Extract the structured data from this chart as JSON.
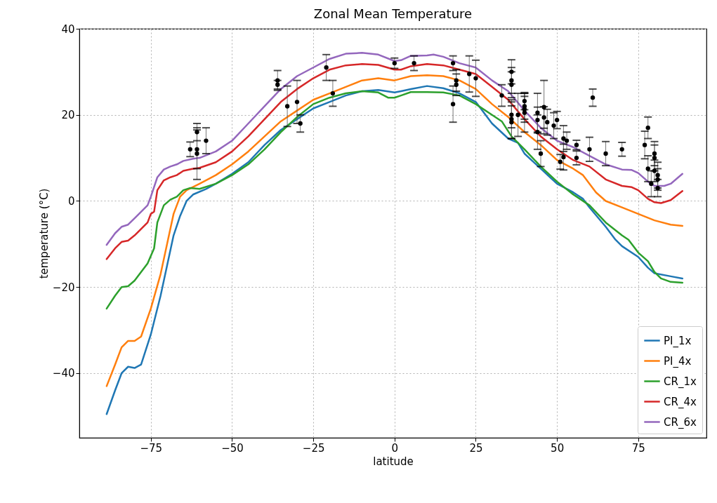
{
  "chart_data": {
    "type": "line",
    "title": "Zonal Mean Temperature",
    "xlabel": "latitude",
    "ylabel": "temperature (°C)",
    "xlim": [
      -97,
      96
    ],
    "ylim": [
      -55,
      40
    ],
    "xticks": [
      -75,
      -50,
      -25,
      0,
      25,
      50,
      75
    ],
    "yticks": [
      -40,
      -20,
      0,
      20,
      40
    ],
    "grid": true,
    "legend": "bottom right",
    "series": [
      {
        "name": "PI_1x",
        "color": "#1f77b4",
        "x": [
          -88.6,
          -86,
          -84,
          -82,
          -80,
          -78,
          -75,
          -72,
          -70,
          -68,
          -66,
          -64,
          -62,
          -58,
          -55,
          -50,
          -45,
          -40,
          -35,
          -30,
          -25,
          -20,
          -15,
          -10,
          -5,
          0,
          2,
          5,
          10,
          15,
          20,
          25,
          27,
          30,
          35,
          38,
          40,
          45,
          50,
          55,
          58,
          60,
          65,
          68,
          70,
          75,
          78,
          80,
          85,
          88.6
        ],
        "values": [
          -49.5,
          -44,
          -40,
          -38.5,
          -38.8,
          -38,
          -31,
          -22,
          -15,
          -8,
          -3.5,
          0,
          1.5,
          2.8,
          4,
          6.3,
          9,
          13,
          16.5,
          19,
          21.5,
          23,
          24.5,
          25.5,
          25.8,
          25.2,
          25.5,
          26,
          26.7,
          26.2,
          25,
          23,
          21,
          18,
          14.5,
          13.5,
          11,
          7.5,
          4,
          2,
          0.5,
          -1.5,
          -6,
          -9,
          -10.5,
          -13,
          -15.5,
          -16.8,
          -17.5,
          -18
        ]
      },
      {
        "name": "PI_4x",
        "color": "#ff7f0e",
        "x": [
          -88.6,
          -86,
          -84,
          -82,
          -80,
          -78,
          -75,
          -72,
          -70,
          -68,
          -66,
          -64,
          -60,
          -55,
          -50,
          -45,
          -40,
          -35,
          -30,
          -25,
          -20,
          -15,
          -10,
          -5,
          0,
          5,
          10,
          15,
          20,
          25,
          30,
          35,
          40,
          45,
          50,
          55,
          58,
          60,
          62,
          65,
          70,
          75,
          80,
          85,
          88.6
        ],
        "values": [
          -43,
          -38,
          -34,
          -32.5,
          -32.5,
          -31.5,
          -25,
          -17,
          -10,
          -3,
          1,
          2.5,
          4,
          6,
          8.5,
          11.5,
          15,
          18.5,
          21,
          23.5,
          25,
          26.5,
          28,
          28.5,
          28,
          29,
          29.2,
          29,
          28,
          26,
          22.5,
          19.5,
          16,
          13,
          9.5,
          7.5,
          6,
          4,
          2,
          0,
          -1.5,
          -3,
          -4.5,
          -5.5,
          -5.8
        ]
      },
      {
        "name": "CR_1x",
        "color": "#2ca02c",
        "x": [
          -88.6,
          -86,
          -84,
          -82,
          -80,
          -78,
          -76,
          -74,
          -73,
          -71,
          -69,
          -67,
          -65,
          -63,
          -60,
          -55,
          -50,
          -45,
          -40,
          -35,
          -30,
          -25,
          -20,
          -15,
          -10,
          -5,
          -2,
          0,
          2,
          5,
          10,
          15,
          20,
          25,
          30,
          33,
          36,
          40,
          45,
          50,
          55,
          60,
          65,
          70,
          72,
          75,
          78,
          80,
          82,
          85,
          88.6
        ],
        "values": [
          -25,
          -22,
          -20,
          -19.8,
          -18.5,
          -16.5,
          -14.5,
          -11,
          -5,
          -1,
          0.3,
          1,
          2.5,
          3,
          2.8,
          4,
          6,
          8.5,
          12,
          16,
          19.5,
          22.5,
          24,
          25,
          25.5,
          25.2,
          24,
          24,
          24.5,
          25.3,
          25.3,
          25.2,
          24.5,
          22.5,
          20,
          18.5,
          15,
          12,
          8,
          4.5,
          1.5,
          -1,
          -5,
          -8,
          -9,
          -12,
          -14,
          -16.5,
          -18,
          -18.8,
          -19
        ]
      },
      {
        "name": "CR_4x",
        "color": "#d62728",
        "x": [
          -88.6,
          -86,
          -84,
          -82,
          -80,
          -78,
          -76,
          -75,
          -74,
          -73,
          -71,
          -69,
          -67,
          -65,
          -62,
          -60,
          -55,
          -50,
          -45,
          -40,
          -35,
          -30,
          -25,
          -20,
          -15,
          -10,
          -5,
          0,
          2,
          5,
          10,
          15,
          20,
          25,
          30,
          35,
          40,
          45,
          50,
          55,
          60,
          65,
          70,
          73,
          75,
          78,
          80,
          82,
          85,
          88.6
        ],
        "values": [
          -13.5,
          -11,
          -9.5,
          -9.2,
          -8,
          -6.5,
          -5,
          -3,
          -2.5,
          2.5,
          4.8,
          5.5,
          6,
          7,
          7.5,
          7.7,
          9,
          11.5,
          15,
          19,
          23,
          26,
          28.5,
          30.5,
          31.5,
          31.8,
          31.6,
          30.5,
          30.5,
          31.3,
          31.8,
          31.5,
          30.5,
          29.5,
          26.5,
          23.5,
          19,
          15,
          12,
          9.5,
          8,
          5,
          3.5,
          3.2,
          2.5,
          0.5,
          -0.3,
          -0.5,
          0.2,
          2.3
        ]
      },
      {
        "name": "CR_6x",
        "color": "#9467bd",
        "x": [
          -88.6,
          -86,
          -84,
          -82,
          -80,
          -78,
          -76,
          -75,
          -73,
          -71,
          -69,
          -67,
          -65,
          -62,
          -60,
          -55,
          -50,
          -45,
          -40,
          -35,
          -30,
          -25,
          -20,
          -15,
          -10,
          -5,
          0,
          2,
          5,
          10,
          12,
          15,
          20,
          25,
          30,
          35,
          40,
          45,
          50,
          55,
          60,
          65,
          70,
          73,
          75,
          78,
          80,
          83,
          85,
          88.6
        ],
        "values": [
          -10.2,
          -7.5,
          -6,
          -5.5,
          -4,
          -2.5,
          -1,
          1,
          5.5,
          7.3,
          8,
          8.5,
          9.3,
          9.8,
          10,
          11.5,
          14,
          18,
          22,
          26,
          29,
          31,
          33,
          34.2,
          34.4,
          34,
          32.5,
          32.7,
          33.7,
          33.8,
          34,
          33.5,
          32,
          31,
          28,
          25.5,
          21,
          17,
          14,
          12.5,
          10.5,
          8.5,
          7.3,
          7.2,
          6.5,
          4.5,
          3.5,
          3.5,
          4,
          6.3
        ]
      },
      {
        "type": "scatter",
        "color": "#000000",
        "marker": "circle",
        "x": [
          -62.9,
          -60.8,
          -60.8,
          -60.8,
          -58.0,
          -36.0,
          -36.0,
          -33.0,
          -30.0,
          -29.0,
          -21.0,
          -19.0,
          0,
          6,
          18,
          18,
          19,
          19,
          23,
          25,
          33,
          36,
          36,
          36,
          36,
          36,
          36,
          38,
          40,
          40,
          40,
          40,
          44,
          44,
          44,
          45,
          46,
          46,
          47,
          49,
          50,
          51,
          52,
          52,
          53,
          56,
          56,
          60,
          61,
          65,
          70,
          77,
          78,
          78,
          79,
          80,
          80,
          80,
          81,
          81,
          81
        ],
        "values": [
          12.0,
          16.0,
          12.0,
          11.0,
          14.0,
          28.0,
          27.0,
          22.0,
          23.0,
          18.0,
          31.0,
          25.0,
          32.0,
          32.0,
          32.0,
          22.5,
          28,
          27,
          29.5,
          28.5,
          24.5,
          30,
          28,
          27,
          20,
          19,
          18.3,
          20,
          23.2,
          22,
          21.3,
          20.5,
          20.5,
          18.8,
          16,
          11,
          21.8,
          19.4,
          18.3,
          17.5,
          18.8,
          9.1,
          14.5,
          10.2,
          14,
          13,
          10,
          12,
          24,
          11,
          12,
          13,
          17,
          7.5,
          4,
          11,
          10,
          7,
          6,
          5,
          3
        ],
        "errors": [
          1.7,
          2.0,
          4.5,
          6.0,
          3.0,
          2.3,
          1.0,
          4.7,
          5.0,
          2.0,
          3.0,
          3.0,
          1.2,
          1.7,
          1.7,
          4.2,
          2.5,
          2.5,
          4.2,
          4.2,
          2.5,
          2.8,
          3,
          3,
          3,
          4.5,
          3.8,
          5,
          2,
          3,
          3,
          4.5,
          4.5,
          3,
          4,
          3,
          6.2,
          2.5,
          3,
          3,
          2,
          1.7,
          3,
          3,
          2,
          1.1,
          1.6,
          2.8,
          2,
          2.8,
          1.6,
          3.2,
          2.5,
          3,
          3,
          2.8,
          3,
          2.5,
          3,
          2.5,
          2
        ]
      }
    ]
  }
}
